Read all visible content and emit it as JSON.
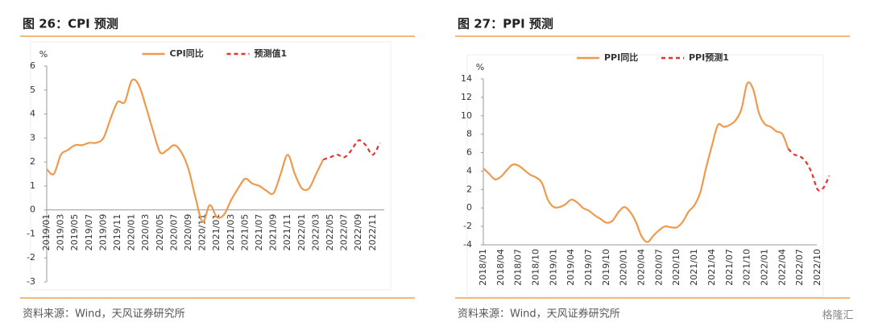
{
  "chart_data": [
    {
      "type": "line",
      "title": "图 26：CPI 预测",
      "y_unit": "%",
      "source": "资料来源：Wind，天风证券研究所",
      "x_axis_position": "zero",
      "grid": false,
      "legend": "top",
      "categories": [
        "2019/01",
        null,
        "2019/03",
        null,
        "2019/05",
        null,
        "2019/07",
        null,
        "2019/09",
        null,
        "2019/11",
        null,
        "2020/01",
        null,
        "2020/03",
        null,
        "2020/05",
        null,
        "2020/07",
        null,
        "2020/09",
        null,
        "2020/11",
        null,
        "2021/01",
        null,
        "2021/03",
        null,
        "2021/05",
        null,
        "2021/07",
        null,
        "2021/09",
        null,
        "2021/11",
        null,
        "2022/01",
        null,
        "2022/03",
        null,
        "2022/05",
        null,
        "2022/07",
        null,
        "2022/09",
        null,
        "2022/11",
        null
      ],
      "ylim": [
        -3,
        6
      ],
      "yticks": [
        -3,
        -2,
        -1,
        0,
        1,
        2,
        3,
        4,
        5,
        6
      ],
      "series": [
        {
          "name": "CPI同比",
          "color": "#ee9a4d",
          "dashed": false,
          "values": [
            1.7,
            1.5,
            2.3,
            2.5,
            2.7,
            2.7,
            2.8,
            2.8,
            3.0,
            3.8,
            4.5,
            4.5,
            5.4,
            5.2,
            4.3,
            3.3,
            2.4,
            2.5,
            2.7,
            2.4,
            1.7,
            0.5,
            -0.5,
            0.2,
            -0.3,
            -0.2,
            0.4,
            0.9,
            1.3,
            1.1,
            1.0,
            0.8,
            0.7,
            1.5,
            2.3,
            1.5,
            0.9,
            0.9,
            1.5,
            2.1,
            null,
            null,
            null,
            null,
            null,
            null,
            null,
            null
          ]
        },
        {
          "name": "预测值1",
          "color": "#e8312f",
          "dashed": true,
          "values": [
            null,
            null,
            null,
            null,
            null,
            null,
            null,
            null,
            null,
            null,
            null,
            null,
            null,
            null,
            null,
            null,
            null,
            null,
            null,
            null,
            null,
            null,
            null,
            null,
            null,
            null,
            null,
            null,
            null,
            null,
            null,
            null,
            null,
            null,
            null,
            null,
            null,
            null,
            null,
            2.1,
            2.2,
            2.3,
            2.2,
            2.5,
            2.9,
            2.7,
            2.3,
            2.8
          ]
        }
      ]
    },
    {
      "type": "line",
      "title": "图 27：PPI 预测",
      "y_unit": "%",
      "source": "资料来源：Wind，天风证券研究所",
      "x_axis_position": "bottom",
      "grid": false,
      "legend": "top",
      "categories": [
        "2018/01",
        null,
        null,
        "2018/04",
        null,
        null,
        "2018/07",
        null,
        null,
        "2018/10",
        null,
        null,
        "2019/01",
        null,
        null,
        "2019/04",
        null,
        null,
        "2019/07",
        null,
        null,
        "2019/10",
        null,
        null,
        "2020/01",
        null,
        null,
        "2020/04",
        null,
        null,
        "2020/07",
        null,
        null,
        "2020/10",
        null,
        null,
        "2021/01",
        null,
        null,
        "2021/04",
        null,
        null,
        "2021/07",
        null,
        null,
        "2021/10",
        null,
        null,
        "2022/01",
        null,
        null,
        "2022/04",
        null,
        null,
        "2022/07",
        null,
        null,
        "2022/10",
        null,
        null
      ],
      "ylim": [
        -4,
        14
      ],
      "yticks": [
        -4,
        -2,
        0,
        2,
        4,
        6,
        8,
        10,
        12,
        14
      ],
      "series": [
        {
          "name": "PPI同比",
          "color": "#ee9a4d",
          "dashed": false,
          "values": [
            4.3,
            3.7,
            3.1,
            3.4,
            4.1,
            4.7,
            4.6,
            4.1,
            3.6,
            3.3,
            2.7,
            0.9,
            0.1,
            0.1,
            0.4,
            0.9,
            0.6,
            0.0,
            -0.3,
            -0.8,
            -1.2,
            -1.6,
            -1.4,
            -0.5,
            0.1,
            -0.4,
            -1.5,
            -3.1,
            -3.7,
            -3.0,
            -2.4,
            -2.0,
            -2.1,
            -2.1,
            -1.5,
            -0.4,
            0.3,
            1.7,
            4.4,
            6.8,
            9.0,
            8.8,
            9.0,
            9.5,
            10.7,
            13.5,
            12.9,
            10.3,
            9.1,
            8.8,
            8.3,
            8.0,
            6.4,
            null,
            null,
            null,
            null,
            null,
            null,
            null
          ]
        },
        {
          "name": "PPI预测1",
          "color": "#e8312f",
          "dashed": true,
          "values": [
            null,
            null,
            null,
            null,
            null,
            null,
            null,
            null,
            null,
            null,
            null,
            null,
            null,
            null,
            null,
            null,
            null,
            null,
            null,
            null,
            null,
            null,
            null,
            null,
            null,
            null,
            null,
            null,
            null,
            null,
            null,
            null,
            null,
            null,
            null,
            null,
            null,
            null,
            null,
            null,
            null,
            null,
            null,
            null,
            null,
            null,
            null,
            null,
            null,
            null,
            null,
            null,
            6.4,
            5.8,
            5.6,
            5.0,
            3.8,
            2.0,
            2.2,
            3.5
          ]
        }
      ]
    }
  ],
  "watermark": "格隆汇"
}
